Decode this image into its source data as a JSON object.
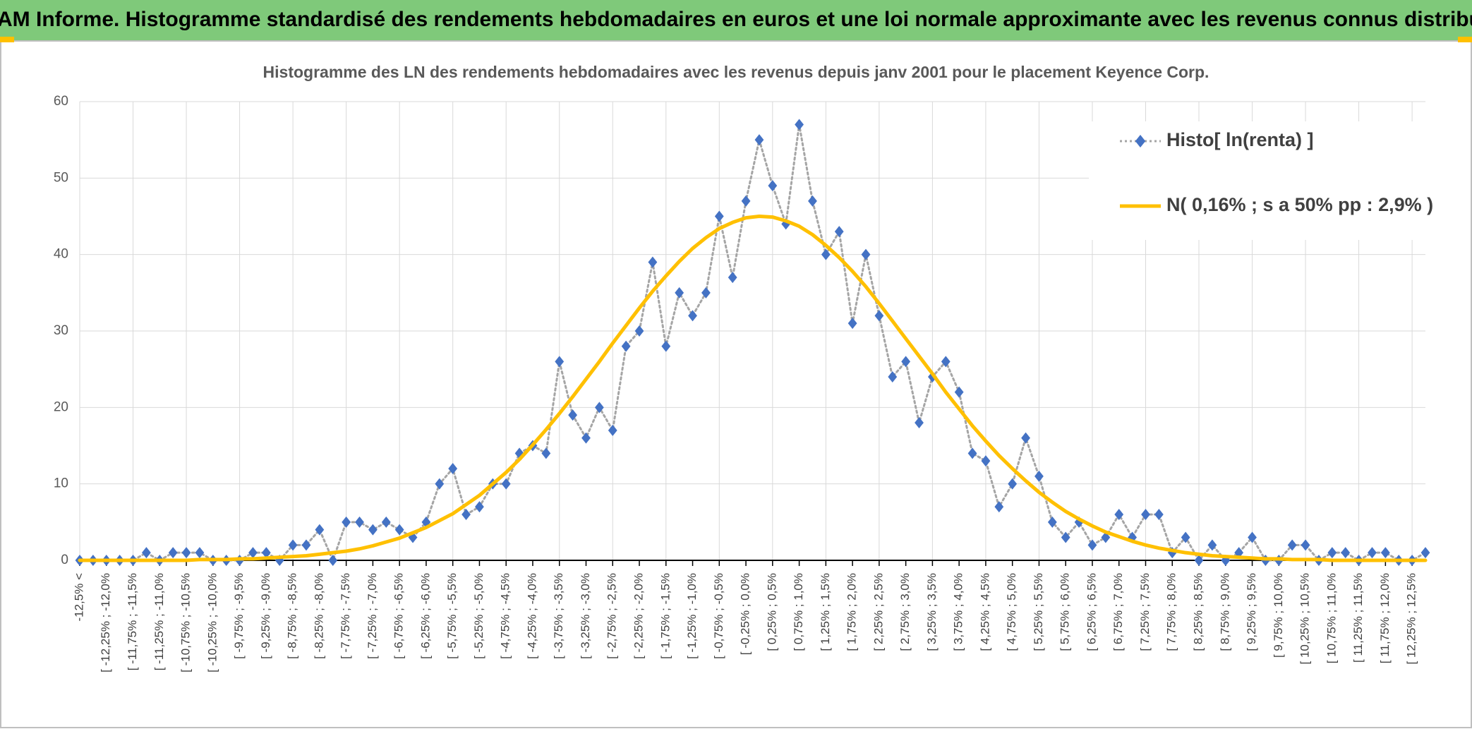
{
  "page_title": "ADAM Informe. Histogramme standardisé des rendements hebdomadaires en euros et une loi normale approximante avec les revenus connus distribués",
  "chart_data": {
    "type": "line",
    "title": "Histogramme des LN des rendements hebdomadaires avec les revenus depuis janv 2001 pour le placement Keyence Corp.",
    "categories": [
      "-12,5% <",
      null,
      "[ -12,25% ; -12,0%",
      null,
      "[ -11,75% ; -11,5%",
      null,
      "[ -11,25% ; -11,0%",
      null,
      "[ -10,75% ; -10,5%",
      null,
      "[ -10,25% ; -10,0%",
      null,
      "[ -9,75% ; -9,5%",
      null,
      "[ -9,25% ; -9,0%",
      null,
      "[ -8,75% ; -8,5%",
      null,
      "[ -8,25% ; -8,0%",
      null,
      "[ -7,75% ; -7,5%",
      null,
      "[ -7,25% ; -7,0%",
      null,
      "[ -6,75% ; -6,5%",
      null,
      "[ -6,25% ; -6,0%",
      null,
      "[ -5,75% ; -5,5%",
      null,
      "[ -5,25% ; -5,0%",
      null,
      "[ -4,75% ; -4,5%",
      null,
      "[ -4,25% ; -4,0%",
      null,
      "[ -3,75% ; -3,5%",
      null,
      "[ -3,25% ; -3,0%",
      null,
      "[ -2,75% ; -2,5%",
      null,
      "[ -2,25% ; -2,0%",
      null,
      "[ -1,75% ; -1,5%",
      null,
      "[ -1,25% ; -1,0%",
      null,
      "[ -0,75% ; -0,5%",
      null,
      "[ -0,25% ; 0,0%",
      null,
      "[ 0,25% ; 0,5%",
      null,
      "[ 0,75% ; 1,0%",
      null,
      "[ 1,25% ; 1,5%",
      null,
      "[ 1,75% ; 2,0%",
      null,
      "[ 2,25% ; 2,5%",
      null,
      "[ 2,75% ; 3,0%",
      null,
      "[ 3,25% ; 3,5%",
      null,
      "[ 3,75% ; 4,0%",
      null,
      "[ 4,25% ; 4,5%",
      null,
      "[ 4,75% ; 5,0%",
      null,
      "[ 5,25% ; 5,5%",
      null,
      "[ 5,75% ; 6,0%",
      null,
      "[ 6,25% ; 6,5%",
      null,
      "[ 6,75% ; 7,0%",
      null,
      "[ 7,25% ; 7,5%",
      null,
      "[ 7,75% ; 8,0%",
      null,
      "[ 8,25% ; 8,5%",
      null,
      "[ 8,75% ; 9,0%",
      null,
      "[ 9,25% ; 9,5%",
      null,
      "[ 9,75% ; 10,0%",
      null,
      "[ 10,25% ; 10,5%",
      null,
      "[ 10,75% ; 11,0%",
      null,
      "[ 11,25% ; 11,5%",
      null,
      "[ 11,75% ; 12,0%",
      null,
      "[ 12,25% ; 12,5%",
      null
    ],
    "series": [
      {
        "name": "Histo[ ln(renta) ]",
        "color": "#4472c4",
        "line_color": "#a5a5a5",
        "line_style": "dotted",
        "marker": "diamond",
        "values": [
          0,
          0,
          0,
          0,
          0,
          1,
          0,
          1,
          1,
          1,
          0,
          0,
          0,
          1,
          1,
          0,
          2,
          2,
          4,
          0,
          5,
          5,
          4,
          5,
          4,
          3,
          5,
          10,
          12,
          6,
          7,
          10,
          10,
          14,
          15,
          14,
          26,
          19,
          16,
          20,
          17,
          28,
          30,
          39,
          28,
          35,
          32,
          35,
          45,
          37,
          47,
          55,
          49,
          44,
          57,
          47,
          40,
          43,
          31,
          40,
          32,
          24,
          26,
          18,
          24,
          26,
          22,
          14,
          13,
          7,
          10,
          16,
          11,
          5,
          3,
          5,
          2,
          3,
          6,
          3,
          6,
          6,
          1,
          3,
          0,
          2,
          0,
          1,
          3,
          0,
          0,
          2,
          2,
          0,
          1,
          1,
          0,
          1,
          1,
          0,
          0,
          1
        ]
      },
      {
        "name": "N( 0,16% ; s a 50% pp : 2,9% )",
        "color": "#ffc000",
        "line_style": "solid",
        "marker": "none",
        "values": [
          0,
          0,
          0,
          0,
          0,
          0,
          0,
          0,
          0,
          0.1,
          0.1,
          0.1,
          0.2,
          0.2,
          0.3,
          0.4,
          0.5,
          0.6,
          0.8,
          1.0,
          1.2,
          1.5,
          1.9,
          2.4,
          2.9,
          3.6,
          4.3,
          5.2,
          6.1,
          7.3,
          8.5,
          10.0,
          11.5,
          13.2,
          15.1,
          17.1,
          19.2,
          21.4,
          23.7,
          26.0,
          28.4,
          30.7,
          33.0,
          35.2,
          37.2,
          39.1,
          40.8,
          42.2,
          43.4,
          44.2,
          44.8,
          45.0,
          44.9,
          44.4,
          43.7,
          42.6,
          41.2,
          39.6,
          37.8,
          35.8,
          33.6,
          31.3,
          29.0,
          26.7,
          24.4,
          22.0,
          19.8,
          17.6,
          15.6,
          13.7,
          12.0,
          10.4,
          8.9,
          7.6,
          6.4,
          5.4,
          4.5,
          3.7,
          3.1,
          2.5,
          2.0,
          1.6,
          1.3,
          1.0,
          0.8,
          0.6,
          0.5,
          0.4,
          0.3,
          0.2,
          0.2,
          0.1,
          0.1,
          0.1,
          0,
          0,
          0,
          0,
          0,
          0,
          0,
          0
        ]
      }
    ],
    "ylim": [
      0,
      60
    ],
    "yticks": [
      0,
      10,
      20,
      30,
      40,
      50,
      60
    ],
    "grid": true,
    "legend": "upper right"
  }
}
